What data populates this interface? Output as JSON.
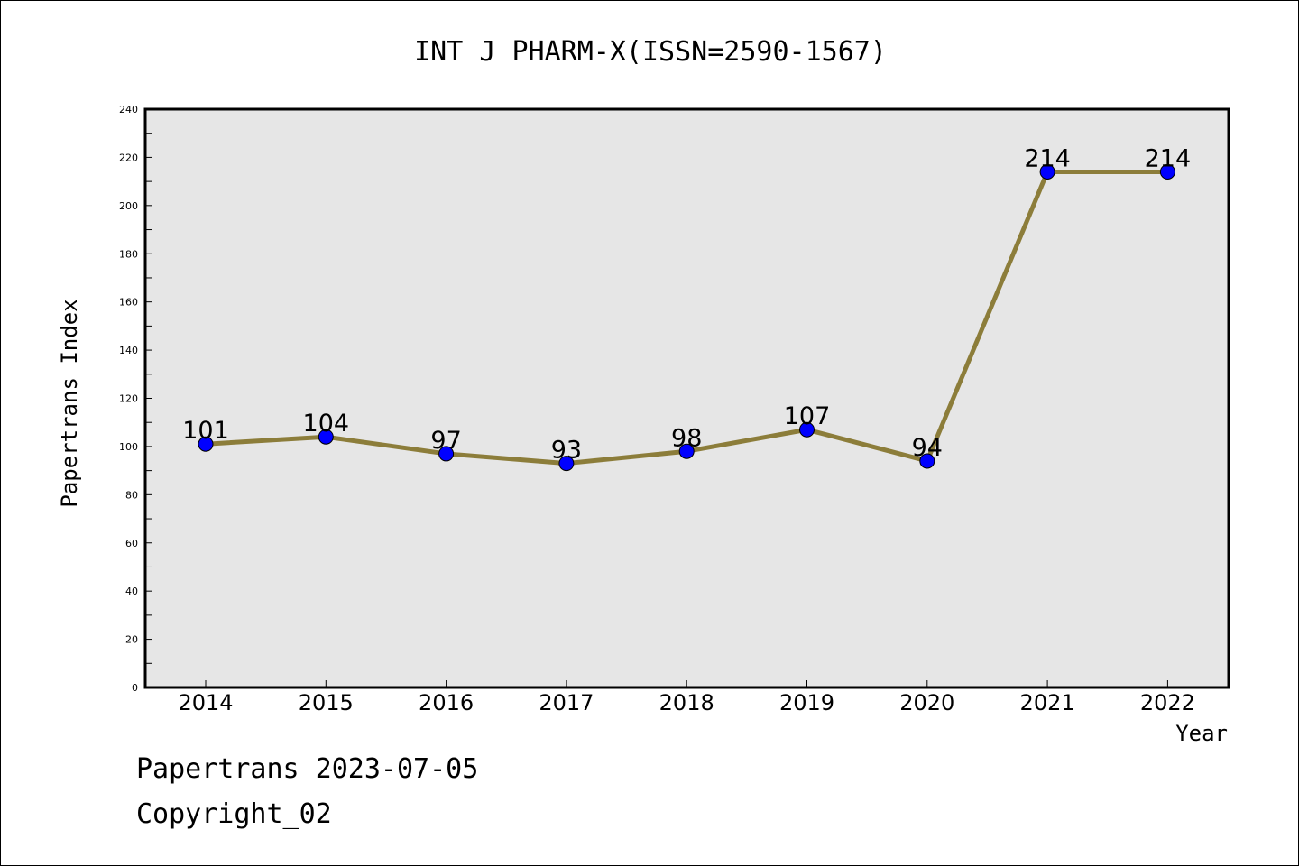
{
  "chart_data": {
    "type": "line",
    "title": "INT J PHARM-X(ISSN=2590-1567)",
    "xlabel": "Year",
    "ylabel": "Papertrans Index",
    "categories": [
      "2014",
      "2015",
      "2016",
      "2017",
      "2018",
      "2019",
      "2020",
      "2021",
      "2022"
    ],
    "values": [
      101,
      104,
      97,
      93,
      98,
      107,
      94,
      214,
      214
    ],
    "ylim": [
      0,
      240
    ],
    "yticks": [
      0,
      20,
      40,
      60,
      80,
      100,
      120,
      140,
      160,
      180,
      200,
      220,
      240
    ],
    "grid": false,
    "legend": "none",
    "colors": {
      "line": "#8c7d3a",
      "marker": "#0000ff",
      "plot_background": "#e6e6e6"
    }
  },
  "footer": {
    "line1": "Papertrans 2023-07-05",
    "line2": "Copyright_02"
  }
}
